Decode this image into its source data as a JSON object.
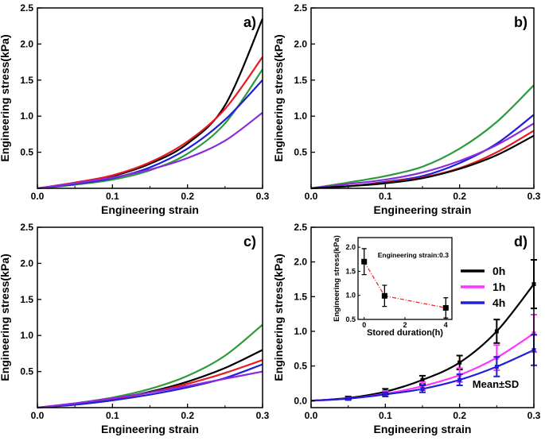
{
  "colors": {
    "black": "#000000",
    "red": "#e8191f",
    "green": "#2e9a3c",
    "blue": "#1f1fd6",
    "purple": "#8a2be2",
    "magenta": "#ff33ff",
    "inset_line": "#dd3333"
  },
  "chart_data": [
    {
      "id": "a",
      "type": "line",
      "panel_label": "a)",
      "xlabel": "Engineering strain",
      "ylabel": "Engineering stress(kPa)",
      "xlim": [
        0,
        0.3
      ],
      "ylim": [
        0,
        2.5
      ],
      "xticks": [
        0,
        0.1,
        0.2,
        0.3
      ],
      "xtick_labels": [
        "0.0",
        "0.1",
        "0.2",
        "0.3"
      ],
      "yticks": [
        0.5,
        1.0,
        1.5,
        2.0,
        2.5
      ],
      "ytick_labels": [
        "0.5",
        "1.0",
        "1.5",
        "2.0",
        "2.5"
      ],
      "series": [
        {
          "color": "black",
          "x": [
            0,
            0.05,
            0.1,
            0.15,
            0.2,
            0.25,
            0.3
          ],
          "y": [
            0,
            0.07,
            0.17,
            0.34,
            0.62,
            1.15,
            2.35
          ]
        },
        {
          "color": "red",
          "x": [
            0,
            0.05,
            0.1,
            0.15,
            0.2,
            0.25,
            0.3
          ],
          "y": [
            0,
            0.08,
            0.18,
            0.36,
            0.65,
            1.1,
            1.82
          ]
        },
        {
          "color": "green",
          "x": [
            0,
            0.05,
            0.1,
            0.15,
            0.2,
            0.25,
            0.3
          ],
          "y": [
            0,
            0.05,
            0.12,
            0.25,
            0.48,
            0.9,
            1.65
          ]
        },
        {
          "color": "blue",
          "x": [
            0,
            0.05,
            0.1,
            0.15,
            0.2,
            0.25,
            0.3
          ],
          "y": [
            0,
            0.06,
            0.14,
            0.29,
            0.55,
            0.95,
            1.5
          ]
        },
        {
          "color": "purple",
          "x": [
            0,
            0.05,
            0.1,
            0.15,
            0.2,
            0.25,
            0.3
          ],
          "y": [
            0,
            0.07,
            0.15,
            0.26,
            0.42,
            0.66,
            1.05
          ]
        }
      ]
    },
    {
      "id": "b",
      "type": "line",
      "panel_label": "b)",
      "xlabel": "Engineering strain",
      "ylabel": "Engineering stress(kPa)",
      "xlim": [
        0,
        0.3
      ],
      "ylim": [
        0,
        2.5
      ],
      "xticks": [
        0,
        0.1,
        0.2,
        0.3
      ],
      "xtick_labels": [
        "0.0",
        "0.1",
        "0.2",
        "0.3"
      ],
      "yticks": [
        0.5,
        1.0,
        1.5,
        2.0,
        2.5
      ],
      "ytick_labels": [
        "0.5",
        "1.0",
        "1.5",
        "2.0",
        "2.5"
      ],
      "series": [
        {
          "color": "green",
          "x": [
            0,
            0.05,
            0.1,
            0.15,
            0.2,
            0.25,
            0.3
          ],
          "y": [
            0,
            0.08,
            0.17,
            0.3,
            0.55,
            0.92,
            1.43
          ]
        },
        {
          "color": "blue",
          "x": [
            0,
            0.05,
            0.1,
            0.15,
            0.2,
            0.25,
            0.3
          ],
          "y": [
            0,
            0.03,
            0.09,
            0.17,
            0.35,
            0.62,
            1.02
          ]
        },
        {
          "color": "purple",
          "x": [
            0,
            0.05,
            0.1,
            0.15,
            0.2,
            0.25,
            0.3
          ],
          "y": [
            0,
            0.06,
            0.12,
            0.22,
            0.38,
            0.6,
            0.9
          ]
        },
        {
          "color": "red",
          "x": [
            0,
            0.05,
            0.1,
            0.15,
            0.2,
            0.25,
            0.3
          ],
          "y": [
            0,
            0.03,
            0.08,
            0.15,
            0.28,
            0.5,
            0.8
          ]
        },
        {
          "color": "black",
          "x": [
            0,
            0.05,
            0.1,
            0.15,
            0.2,
            0.25,
            0.3
          ],
          "y": [
            0,
            0.03,
            0.07,
            0.14,
            0.27,
            0.46,
            0.73
          ]
        }
      ]
    },
    {
      "id": "c",
      "type": "line",
      "panel_label": "c)",
      "xlabel": "Engineering strain",
      "ylabel": "Engineering stress(kPa)",
      "xlim": [
        0,
        0.3
      ],
      "ylim": [
        0,
        2.5
      ],
      "xticks": [
        0,
        0.1,
        0.2,
        0.3
      ],
      "xtick_labels": [
        "0.0",
        "0.1",
        "0.2",
        "0.3"
      ],
      "yticks": [
        0.5,
        1.0,
        1.5,
        2.0,
        2.5
      ],
      "ytick_labels": [
        "0.5",
        "1.0",
        "1.5",
        "2.0",
        "2.5"
      ],
      "series": [
        {
          "color": "green",
          "x": [
            0,
            0.05,
            0.1,
            0.15,
            0.2,
            0.25,
            0.3
          ],
          "y": [
            0,
            0.06,
            0.14,
            0.26,
            0.44,
            0.72,
            1.15
          ]
        },
        {
          "color": "black",
          "x": [
            0,
            0.05,
            0.1,
            0.15,
            0.2,
            0.25,
            0.3
          ],
          "y": [
            0,
            0.05,
            0.12,
            0.22,
            0.36,
            0.55,
            0.8
          ]
        },
        {
          "color": "red",
          "x": [
            0,
            0.05,
            0.1,
            0.15,
            0.2,
            0.25,
            0.3
          ],
          "y": [
            0,
            0.05,
            0.12,
            0.21,
            0.33,
            0.48,
            0.66
          ]
        },
        {
          "color": "blue",
          "x": [
            0,
            0.05,
            0.1,
            0.15,
            0.2,
            0.25,
            0.3
          ],
          "y": [
            0,
            0.04,
            0.1,
            0.18,
            0.28,
            0.41,
            0.6
          ]
        },
        {
          "color": "purple",
          "x": [
            0,
            0.05,
            0.1,
            0.15,
            0.2,
            0.25,
            0.3
          ],
          "y": [
            0,
            0.06,
            0.13,
            0.21,
            0.3,
            0.4,
            0.5
          ]
        }
      ]
    },
    {
      "id": "d",
      "type": "line",
      "panel_label": "d)",
      "xlabel": "Engineering strain",
      "ylabel": "Engineering stress(kPa)",
      "xlim": [
        0,
        0.3
      ],
      "ylim": [
        -0.1,
        2.5
      ],
      "xticks": [
        0,
        0.1,
        0.2,
        0.3
      ],
      "xtick_labels": [
        "0.0",
        "0.1",
        "0.2",
        "0.3"
      ],
      "yticks": [
        0,
        0.5,
        1.0,
        1.5,
        2.0,
        2.5
      ],
      "ytick_labels": [
        "0.0",
        "0.5",
        "1.0",
        "1.5",
        "2.0",
        "2.5"
      ],
      "legend": [
        "0h",
        "1h",
        "4h"
      ],
      "legend_position": "top-right",
      "annotation": "Mean±SD",
      "series": [
        {
          "name": "0h",
          "color": "black",
          "x": [
            0,
            0.05,
            0.1,
            0.15,
            0.2,
            0.25,
            0.3
          ],
          "y": [
            0,
            0.04,
            0.13,
            0.3,
            0.55,
            1.0,
            1.68
          ],
          "err": [
            0,
            0.02,
            0.04,
            0.06,
            0.1,
            0.17,
            0.35
          ]
        },
        {
          "name": "1h",
          "color": "magenta",
          "x": [
            0,
            0.05,
            0.1,
            0.15,
            0.2,
            0.25,
            0.3
          ],
          "y": [
            0,
            0.03,
            0.1,
            0.21,
            0.37,
            0.62,
            0.97
          ],
          "err": [
            0,
            0.02,
            0.04,
            0.06,
            0.1,
            0.18,
            0.27
          ]
        },
        {
          "name": "4h",
          "color": "blue",
          "x": [
            0,
            0.05,
            0.1,
            0.15,
            0.2,
            0.25,
            0.3
          ],
          "y": [
            0,
            0.03,
            0.09,
            0.17,
            0.3,
            0.49,
            0.73
          ],
          "err": [
            0,
            0.02,
            0.03,
            0.05,
            0.08,
            0.14,
            0.22
          ]
        }
      ],
      "inset": {
        "type": "scatter",
        "title": "Engineering strain:0.3",
        "xlabel": "Stored duration(h)",
        "ylabel": "Engineering stress(kPa)",
        "xlim": [
          -0.3,
          4.3
        ],
        "ylim": [
          0.5,
          2.2
        ],
        "xticks": [
          0,
          2,
          4
        ],
        "xtick_labels": [
          "0",
          "2",
          "4"
        ],
        "yticks": [
          0.5,
          1.0,
          1.5,
          2.0
        ],
        "ytick_labels": [
          "0.5",
          "1.0",
          "1.5",
          "2.0"
        ],
        "x": [
          0,
          1,
          4
        ],
        "y": [
          1.7,
          0.99,
          0.74
        ],
        "err": [
          0.27,
          0.22,
          0.21
        ]
      }
    }
  ]
}
